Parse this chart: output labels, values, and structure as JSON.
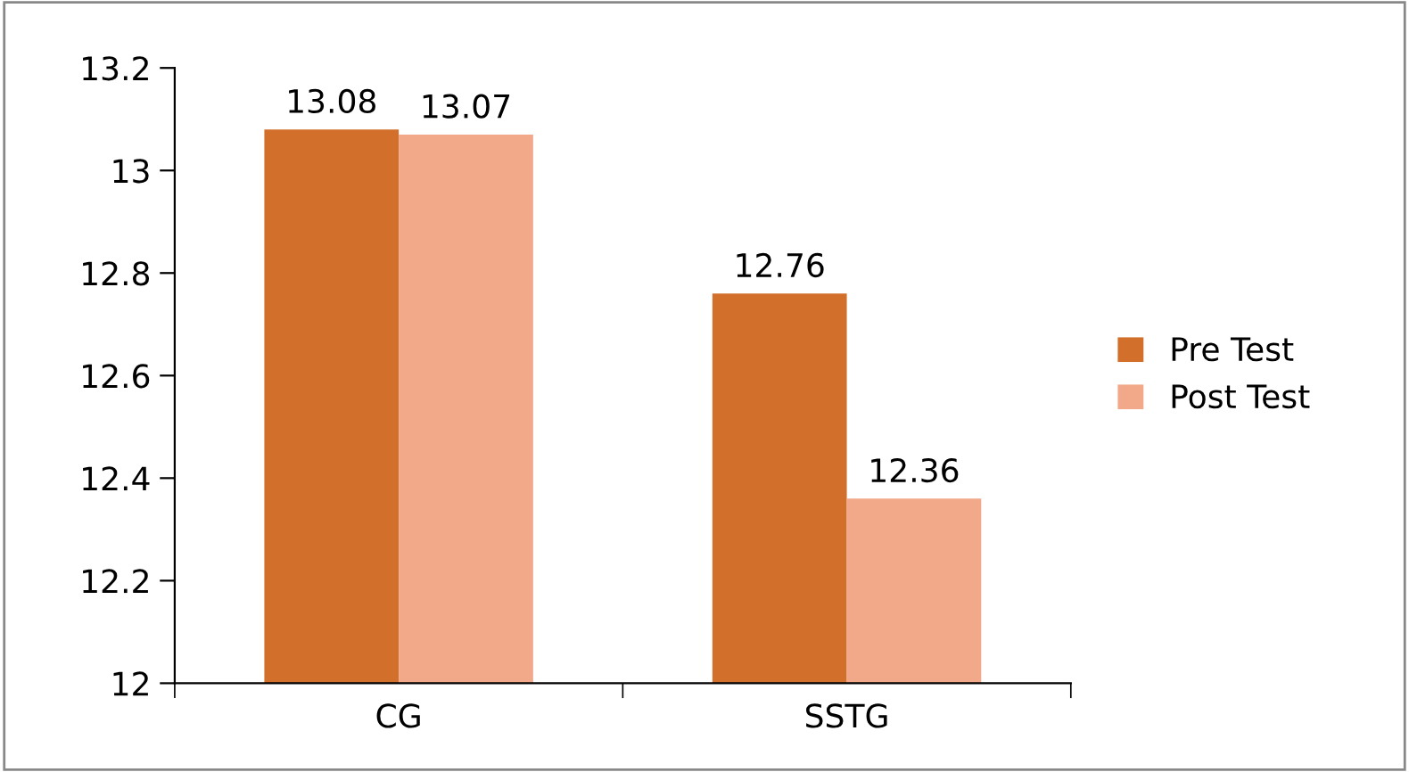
{
  "chart_data": {
    "type": "bar",
    "categories": [
      "CG",
      "SSTG"
    ],
    "series": [
      {
        "name": "Pre Test",
        "color": "#d2702b",
        "values": [
          13.08,
          12.76
        ]
      },
      {
        "name": "Post Test",
        "color": "#f2a98a",
        "values": [
          13.07,
          12.36
        ]
      }
    ],
    "ylim": [
      12,
      13.2
    ],
    "yticks": [
      12,
      12.2,
      12.4,
      12.6,
      12.8,
      13,
      13.2
    ],
    "data_labels": true,
    "legend": "right",
    "grid": false
  }
}
